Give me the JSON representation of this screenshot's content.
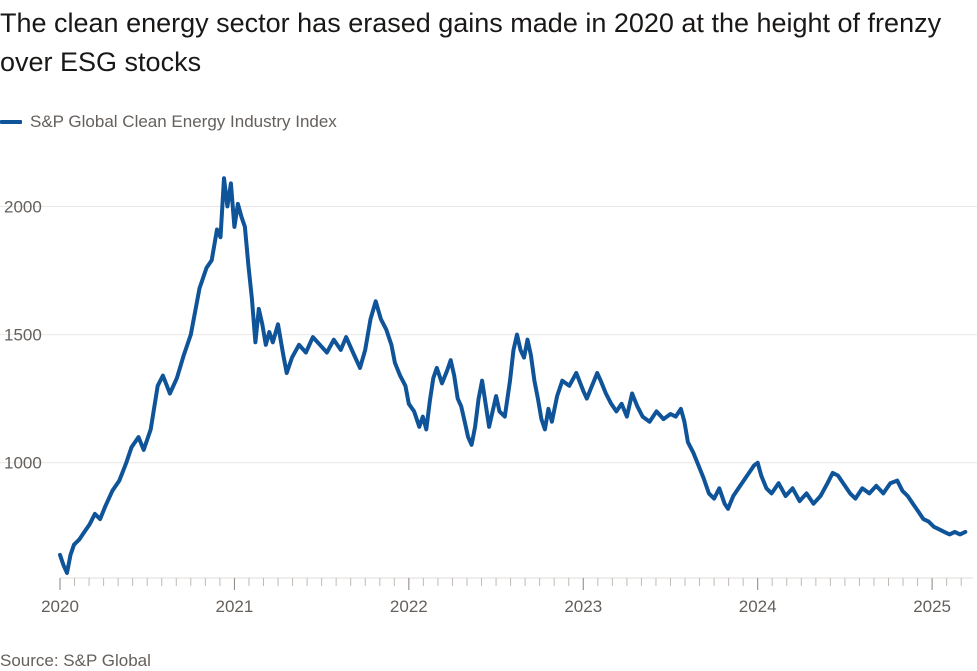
{
  "title": "The clean energy sector has erased gains made in 2020 at the height of frenzy over ESG stocks",
  "legend": {
    "label": "S&P Global Clean Energy Industry Index"
  },
  "source": "Source: S&P Global",
  "colors": {
    "series": "#0f5499",
    "grid": "#e9e6e3",
    "axis_text": "#66605c",
    "tick": "#bfbab6"
  },
  "chart_data": {
    "type": "line",
    "title": "The clean energy sector has erased gains made in 2020 at the height of frenzy over ESG stocks",
    "xlabel": "",
    "ylabel": "",
    "x_ticks": [
      "2020",
      "2021",
      "2022",
      "2023",
      "2024",
      "2025"
    ],
    "y_ticks": [
      1000,
      1500,
      2000
    ],
    "xlim": [
      2020.0,
      2025.2
    ],
    "ylim": [
      550,
      2150
    ],
    "grid": true,
    "legend_position": "top-left",
    "series": [
      {
        "name": "S&P Global Clean Energy Industry Index",
        "points": [
          [
            2020.0,
            640
          ],
          [
            2020.02,
            600
          ],
          [
            2020.04,
            570
          ],
          [
            2020.06,
            640
          ],
          [
            2020.08,
            680
          ],
          [
            2020.11,
            700
          ],
          [
            2020.14,
            730
          ],
          [
            2020.17,
            760
          ],
          [
            2020.2,
            800
          ],
          [
            2020.23,
            780
          ],
          [
            2020.26,
            830
          ],
          [
            2020.3,
            890
          ],
          [
            2020.34,
            930
          ],
          [
            2020.38,
            1000
          ],
          [
            2020.41,
            1060
          ],
          [
            2020.45,
            1100
          ],
          [
            2020.48,
            1050
          ],
          [
            2020.52,
            1130
          ],
          [
            2020.56,
            1300
          ],
          [
            2020.59,
            1340
          ],
          [
            2020.63,
            1270
          ],
          [
            2020.67,
            1330
          ],
          [
            2020.71,
            1420
          ],
          [
            2020.75,
            1500
          ],
          [
            2020.8,
            1680
          ],
          [
            2020.84,
            1760
          ],
          [
            2020.87,
            1790
          ],
          [
            2020.9,
            1910
          ],
          [
            2020.92,
            1880
          ],
          [
            2020.94,
            2110
          ],
          [
            2020.96,
            2000
          ],
          [
            2020.98,
            2090
          ],
          [
            2021.0,
            1920
          ],
          [
            2021.02,
            2010
          ],
          [
            2021.04,
            1960
          ],
          [
            2021.06,
            1920
          ],
          [
            2021.08,
            1770
          ],
          [
            2021.1,
            1640
          ],
          [
            2021.12,
            1470
          ],
          [
            2021.14,
            1600
          ],
          [
            2021.16,
            1540
          ],
          [
            2021.18,
            1460
          ],
          [
            2021.2,
            1510
          ],
          [
            2021.22,
            1470
          ],
          [
            2021.25,
            1540
          ],
          [
            2021.28,
            1420
          ],
          [
            2021.3,
            1350
          ],
          [
            2021.33,
            1410
          ],
          [
            2021.37,
            1460
          ],
          [
            2021.41,
            1430
          ],
          [
            2021.45,
            1490
          ],
          [
            2021.49,
            1460
          ],
          [
            2021.53,
            1430
          ],
          [
            2021.57,
            1480
          ],
          [
            2021.61,
            1440
          ],
          [
            2021.64,
            1490
          ],
          [
            2021.68,
            1430
          ],
          [
            2021.72,
            1370
          ],
          [
            2021.75,
            1440
          ],
          [
            2021.78,
            1560
          ],
          [
            2021.81,
            1630
          ],
          [
            2021.84,
            1560
          ],
          [
            2021.87,
            1520
          ],
          [
            2021.9,
            1460
          ],
          [
            2021.92,
            1390
          ],
          [
            2021.95,
            1340
          ],
          [
            2021.98,
            1300
          ],
          [
            2022.0,
            1230
          ],
          [
            2022.03,
            1200
          ],
          [
            2022.06,
            1140
          ],
          [
            2022.08,
            1180
          ],
          [
            2022.1,
            1130
          ],
          [
            2022.12,
            1240
          ],
          [
            2022.14,
            1330
          ],
          [
            2022.16,
            1370
          ],
          [
            2022.19,
            1310
          ],
          [
            2022.22,
            1360
          ],
          [
            2022.24,
            1400
          ],
          [
            2022.26,
            1340
          ],
          [
            2022.28,
            1250
          ],
          [
            2022.3,
            1220
          ],
          [
            2022.32,
            1160
          ],
          [
            2022.34,
            1100
          ],
          [
            2022.36,
            1070
          ],
          [
            2022.38,
            1140
          ],
          [
            2022.4,
            1250
          ],
          [
            2022.42,
            1320
          ],
          [
            2022.44,
            1230
          ],
          [
            2022.46,
            1140
          ],
          [
            2022.48,
            1200
          ],
          [
            2022.5,
            1260
          ],
          [
            2022.52,
            1200
          ],
          [
            2022.55,
            1180
          ],
          [
            2022.58,
            1320
          ],
          [
            2022.6,
            1440
          ],
          [
            2022.62,
            1500
          ],
          [
            2022.64,
            1440
          ],
          [
            2022.66,
            1410
          ],
          [
            2022.68,
            1480
          ],
          [
            2022.7,
            1420
          ],
          [
            2022.72,
            1320
          ],
          [
            2022.74,
            1250
          ],
          [
            2022.76,
            1170
          ],
          [
            2022.78,
            1130
          ],
          [
            2022.8,
            1210
          ],
          [
            2022.82,
            1160
          ],
          [
            2022.85,
            1260
          ],
          [
            2022.88,
            1320
          ],
          [
            2022.92,
            1300
          ],
          [
            2022.96,
            1350
          ],
          [
            2023.0,
            1280
          ],
          [
            2023.02,
            1250
          ],
          [
            2023.05,
            1300
          ],
          [
            2023.08,
            1350
          ],
          [
            2023.1,
            1320
          ],
          [
            2023.13,
            1270
          ],
          [
            2023.16,
            1230
          ],
          [
            2023.19,
            1200
          ],
          [
            2023.22,
            1230
          ],
          [
            2023.25,
            1180
          ],
          [
            2023.28,
            1270
          ],
          [
            2023.31,
            1220
          ],
          [
            2023.34,
            1180
          ],
          [
            2023.38,
            1160
          ],
          [
            2023.42,
            1200
          ],
          [
            2023.46,
            1170
          ],
          [
            2023.5,
            1190
          ],
          [
            2023.53,
            1180
          ],
          [
            2023.56,
            1210
          ],
          [
            2023.58,
            1160
          ],
          [
            2023.6,
            1080
          ],
          [
            2023.63,
            1040
          ],
          [
            2023.66,
            990
          ],
          [
            2023.69,
            940
          ],
          [
            2023.72,
            880
          ],
          [
            2023.75,
            860
          ],
          [
            2023.78,
            900
          ],
          [
            2023.81,
            840
          ],
          [
            2023.83,
            820
          ],
          [
            2023.86,
            870
          ],
          [
            2023.89,
            900
          ],
          [
            2023.92,
            930
          ],
          [
            2023.95,
            960
          ],
          [
            2023.98,
            990
          ],
          [
            2024.0,
            1000
          ],
          [
            2024.02,
            950
          ],
          [
            2024.05,
            900
          ],
          [
            2024.08,
            880
          ],
          [
            2024.12,
            920
          ],
          [
            2024.16,
            870
          ],
          [
            2024.2,
            900
          ],
          [
            2024.24,
            850
          ],
          [
            2024.28,
            880
          ],
          [
            2024.32,
            840
          ],
          [
            2024.36,
            870
          ],
          [
            2024.4,
            920
          ],
          [
            2024.43,
            960
          ],
          [
            2024.46,
            950
          ],
          [
            2024.5,
            910
          ],
          [
            2024.53,
            880
          ],
          [
            2024.56,
            860
          ],
          [
            2024.6,
            900
          ],
          [
            2024.64,
            880
          ],
          [
            2024.68,
            910
          ],
          [
            2024.72,
            880
          ],
          [
            2024.76,
            920
          ],
          [
            2024.8,
            930
          ],
          [
            2024.83,
            890
          ],
          [
            2024.86,
            870
          ],
          [
            2024.89,
            840
          ],
          [
            2024.92,
            810
          ],
          [
            2024.95,
            780
          ],
          [
            2024.98,
            770
          ],
          [
            2025.01,
            750
          ],
          [
            2025.04,
            740
          ],
          [
            2025.07,
            730
          ],
          [
            2025.1,
            720
          ],
          [
            2025.13,
            730
          ],
          [
            2025.16,
            720
          ],
          [
            2025.19,
            730
          ]
        ]
      }
    ]
  }
}
